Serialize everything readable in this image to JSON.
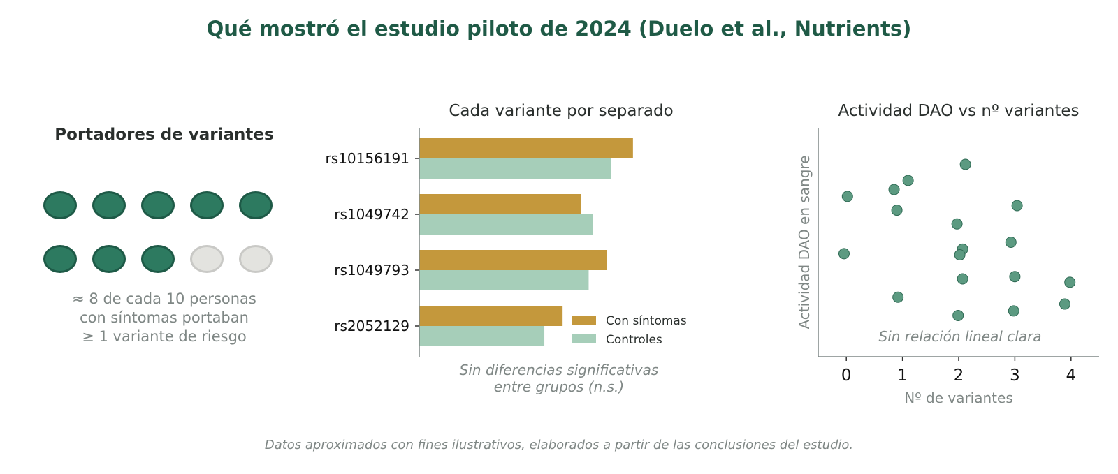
{
  "title": "Qué mostró el estudio piloto de 2024 (Duelo et al., Nutrients)",
  "left_panel": {
    "title": "Portadores de variantes",
    "carriers": 8,
    "total": 10,
    "caption_lines": [
      "≈ 8 de cada 10 personas",
      "con síntomas portaban",
      "≥ 1 variante de riesgo"
    ]
  },
  "chart_data": [
    {
      "type": "bar",
      "orientation": "horizontal",
      "title": "Cada variante por separado",
      "categories": [
        "rs10156191",
        "rs1049742",
        "rs1049793",
        "rs2052129"
      ],
      "series": [
        {
          "name": "Con síntomas",
          "values": [
            0.82,
            0.62,
            0.72,
            0.55
          ]
        },
        {
          "name": "Controles",
          "values": [
            0.735,
            0.665,
            0.65,
            0.48
          ]
        }
      ],
      "xlim": [
        0,
        1
      ],
      "annotation_lines": [
        "Sin diferencias significativas",
        "entre grupos (n.s.)"
      ],
      "legend_position": "bottom-right"
    },
    {
      "type": "scatter",
      "title": "Actividad DAO vs nº variantes",
      "xlabel": "Nº de variantes",
      "ylabel": "Actividad DAO en sangre",
      "xticks": [
        0,
        1,
        2,
        3,
        4
      ],
      "xlim": [
        -0.5,
        4.5
      ],
      "ylim": [
        0,
        10
      ],
      "annotation": "Sin relación lineal clara",
      "points": [
        {
          "x": 0.02,
          "y": 7.0
        },
        {
          "x": -0.04,
          "y": 4.5
        },
        {
          "x": 0.85,
          "y": 7.3
        },
        {
          "x": 1.1,
          "y": 7.7
        },
        {
          "x": 0.9,
          "y": 6.4
        },
        {
          "x": 0.92,
          "y": 2.6
        },
        {
          "x": 2.12,
          "y": 8.4
        },
        {
          "x": 1.97,
          "y": 5.8
        },
        {
          "x": 2.07,
          "y": 4.7
        },
        {
          "x": 2.02,
          "y": 4.45
        },
        {
          "x": 2.07,
          "y": 3.4
        },
        {
          "x": 1.99,
          "y": 1.8
        },
        {
          "x": 3.04,
          "y": 6.6
        },
        {
          "x": 2.93,
          "y": 5.0
        },
        {
          "x": 3.0,
          "y": 3.5
        },
        {
          "x": 2.98,
          "y": 2.0
        },
        {
          "x": 3.98,
          "y": 3.25
        },
        {
          "x": 3.89,
          "y": 2.3
        }
      ]
    }
  ],
  "colors": {
    "title": "#1f5a46",
    "symptoms": "#c4983c",
    "controls": "#a6ceb9",
    "carrier_fill": "#2d7a60",
    "carrier_edge": "#1e5a47",
    "scatter_fill": "#5c9a81",
    "scatter_edge": "#2f6a54",
    "muted_text": "#7f8785",
    "axis": "#7f8785"
  },
  "footer": "Datos aproximados con fines ilustrativos, elaborados a partir de las conclusiones del estudio."
}
